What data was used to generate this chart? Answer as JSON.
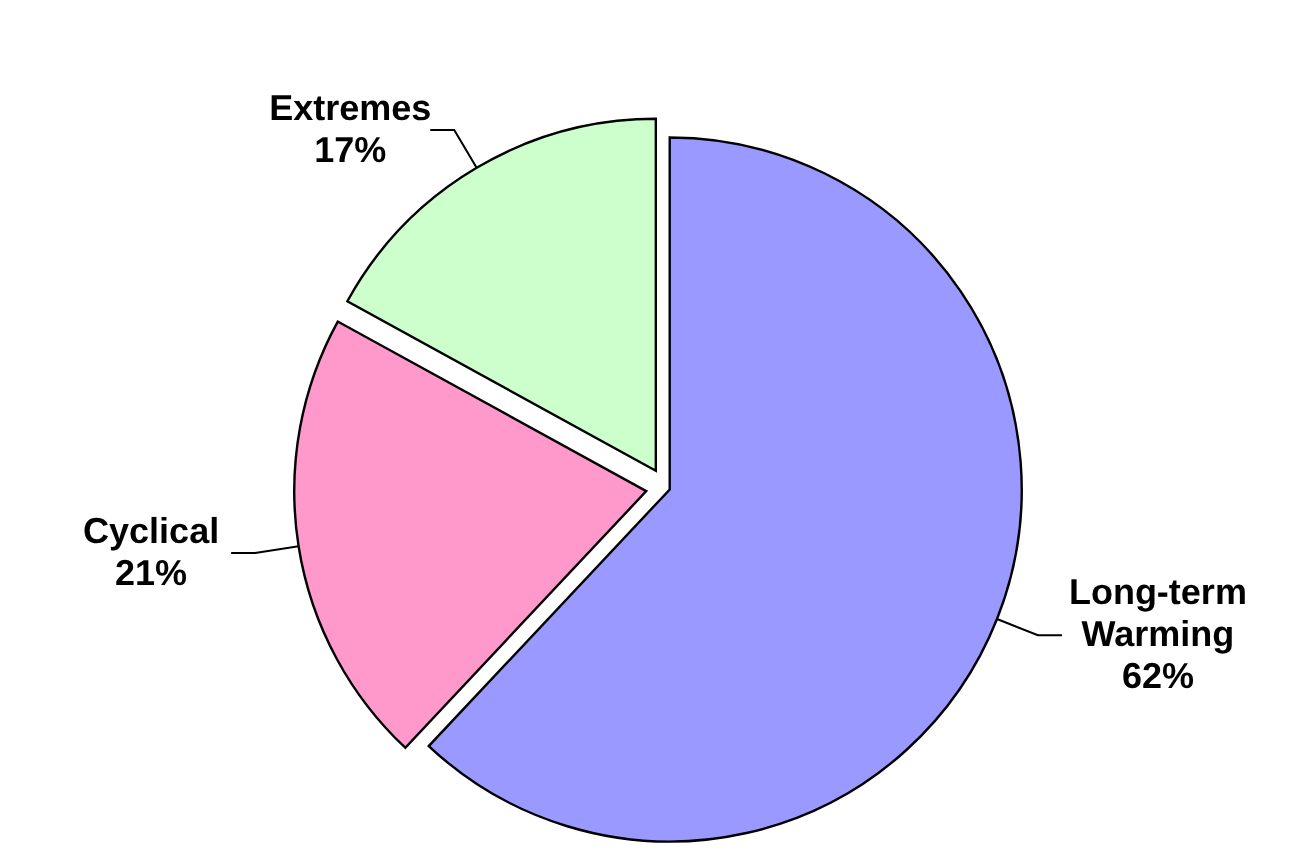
{
  "chart_data": {
    "type": "pie",
    "categories": [
      "Long-term Warming",
      "Cyclical",
      "Extremes"
    ],
    "values": [
      62,
      21,
      17
    ],
    "value_labels": [
      "62%",
      "21%",
      "17%"
    ],
    "colors": [
      "#9999ff",
      "#ff99cc",
      "#ccffcc"
    ]
  }
}
